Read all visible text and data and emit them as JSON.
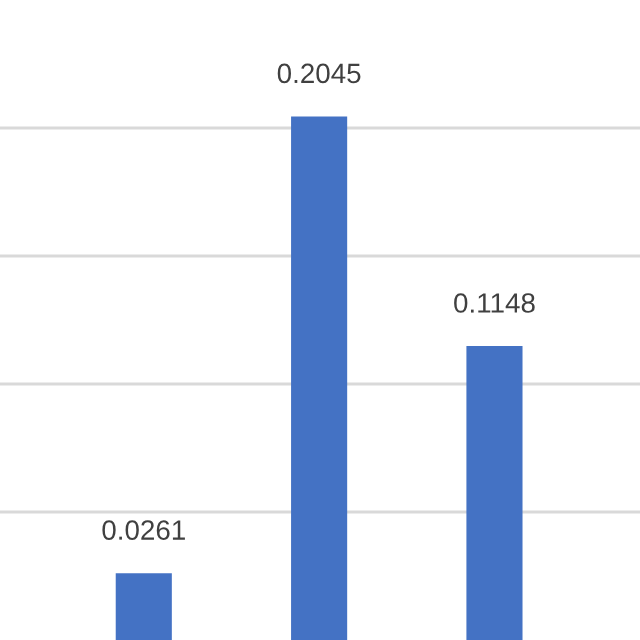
{
  "chart_data": {
    "type": "bar",
    "categories": [
      null,
      null,
      null
    ],
    "values": [
      0.0261,
      0.2045,
      0.1148
    ],
    "color": "#4472c4",
    "ylim": [
      0,
      0.25
    ],
    "yticks": [
      {
        "value": 0.05,
        "label": null
      },
      {
        "value": 0.1,
        "label": null
      },
      {
        "value": 0.15,
        "label": null
      },
      {
        "value": 0.2,
        "label": null
      }
    ],
    "grid": "y",
    "data_labels": true
  }
}
